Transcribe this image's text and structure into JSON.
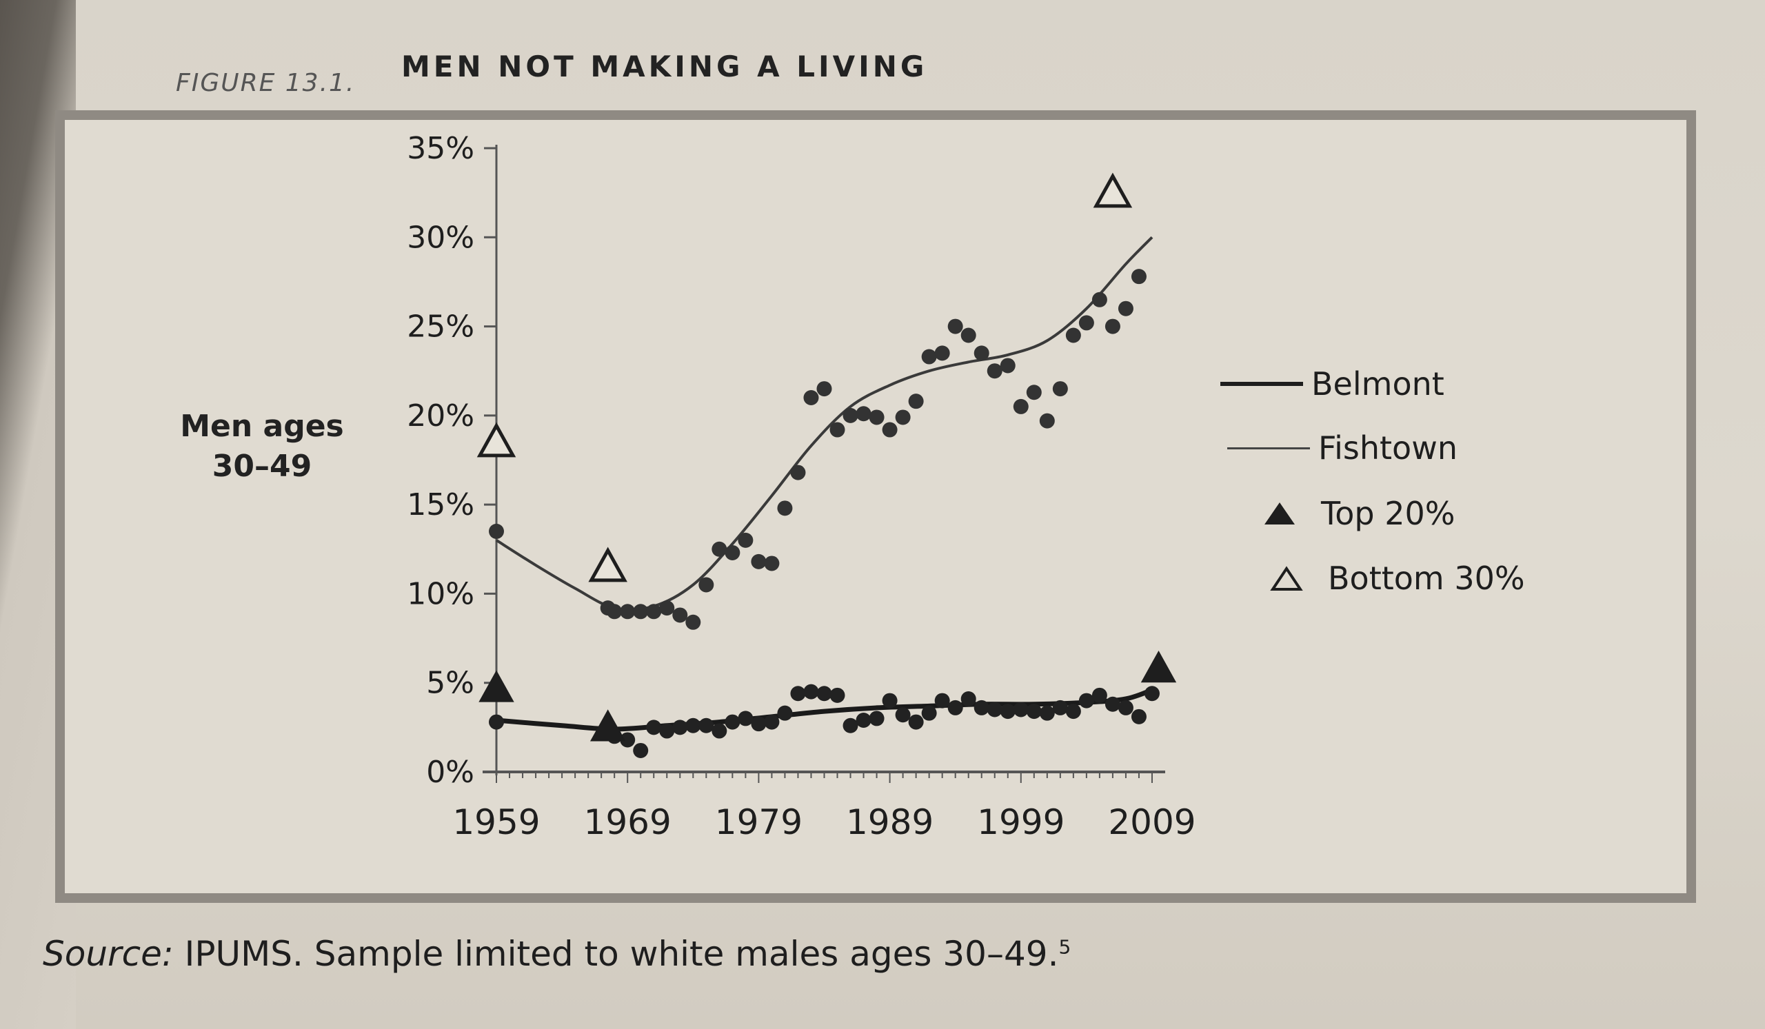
{
  "page": {
    "figure_label": "FIGURE 13.1.",
    "figure_title": "MEN NOT MAKING A LIVING",
    "source_prefix": "Source:",
    "source_text": " IPUMS. Sample limited to white males ages 30–49.",
    "source_footnote": "5"
  },
  "chart_data": {
    "type": "scatter",
    "title": "MEN NOT MAKING A LIVING",
    "ylabel_line1": "Men ages",
    "ylabel_line2": "30–49",
    "xlabel": "",
    "y_ticks": [
      "0%",
      "5%",
      "10%",
      "15%",
      "20%",
      "25%",
      "30%",
      "35%"
    ],
    "x_ticks": [
      "1959",
      "1969",
      "1979",
      "1989",
      "1999",
      "2009"
    ],
    "ylim": [
      0,
      35
    ],
    "xlim": [
      1959,
      2010
    ],
    "grid": false,
    "legend_position": "right",
    "colors": {
      "ink": "#1e1e1e",
      "fishtown": "#3a3a3a",
      "belmont": "#1a1a1a"
    },
    "legend": [
      {
        "label": "Belmont",
        "symbol": "thick-line"
      },
      {
        "label": "Fishtown",
        "symbol": "thin-line"
      },
      {
        "label": "Top 20%",
        "symbol": "filled-triangle"
      },
      {
        "label": "Bottom 30%",
        "symbol": "open-triangle"
      }
    ],
    "series": [
      {
        "name": "Fishtown",
        "points": [
          [
            1959,
            13.5
          ],
          [
            1967.5,
            9.2
          ],
          [
            1968,
            9.0
          ],
          [
            1969,
            9.0
          ],
          [
            1970,
            9.0
          ],
          [
            1971,
            9.0
          ],
          [
            1972,
            9.2
          ],
          [
            1973,
            8.8
          ],
          [
            1974,
            8.4
          ],
          [
            1975,
            10.5
          ],
          [
            1976,
            12.5
          ],
          [
            1977,
            12.3
          ],
          [
            1978,
            13.0
          ],
          [
            1979,
            11.8
          ],
          [
            1980,
            11.7
          ],
          [
            1981,
            14.8
          ],
          [
            1982,
            16.8
          ],
          [
            1983,
            21.0
          ],
          [
            1984,
            21.5
          ],
          [
            1985,
            19.2
          ],
          [
            1986,
            20.0
          ],
          [
            1987,
            20.1
          ],
          [
            1988,
            19.9
          ],
          [
            1989,
            19.2
          ],
          [
            1990,
            19.9
          ],
          [
            1991,
            20.8
          ],
          [
            1992,
            23.3
          ],
          [
            1993,
            23.5
          ],
          [
            1994,
            25.0
          ],
          [
            1995,
            24.5
          ],
          [
            1996,
            23.5
          ],
          [
            1997,
            22.5
          ],
          [
            1998,
            22.8
          ],
          [
            1999,
            20.5
          ],
          [
            2000,
            21.3
          ],
          [
            2001,
            19.7
          ],
          [
            2002,
            21.5
          ],
          [
            2003,
            24.5
          ],
          [
            2004,
            25.2
          ],
          [
            2005,
            26.5
          ],
          [
            2006,
            25.0
          ],
          [
            2007,
            26.0
          ],
          [
            2008,
            27.8
          ]
        ],
        "fit": [
          [
            1959,
            13.0
          ],
          [
            1962,
            11.6
          ],
          [
            1965,
            10.3
          ],
          [
            1968,
            9.2
          ],
          [
            1971,
            9.3
          ],
          [
            1974,
            10.5
          ],
          [
            1977,
            12.8
          ],
          [
            1980,
            15.5
          ],
          [
            1983,
            18.3
          ],
          [
            1986,
            20.5
          ],
          [
            1989,
            21.7
          ],
          [
            1992,
            22.5
          ],
          [
            1995,
            23.0
          ],
          [
            1998,
            23.4
          ],
          [
            2001,
            24.2
          ],
          [
            2004,
            26.0
          ],
          [
            2007,
            28.5
          ],
          [
            2009,
            30.0
          ]
        ]
      },
      {
        "name": "Belmont",
        "points": [
          [
            1959,
            2.8
          ],
          [
            1968,
            2.0
          ],
          [
            1969,
            1.8
          ],
          [
            1970,
            1.2
          ],
          [
            1971,
            2.5
          ],
          [
            1972,
            2.3
          ],
          [
            1973,
            2.5
          ],
          [
            1974,
            2.6
          ],
          [
            1975,
            2.6
          ],
          [
            1976,
            2.3
          ],
          [
            1977,
            2.8
          ],
          [
            1978,
            3.0
          ],
          [
            1979,
            2.7
          ],
          [
            1980,
            2.8
          ],
          [
            1981,
            3.3
          ],
          [
            1982,
            4.4
          ],
          [
            1983,
            4.5
          ],
          [
            1984,
            4.4
          ],
          [
            1985,
            4.3
          ],
          [
            1986,
            2.6
          ],
          [
            1987,
            2.9
          ],
          [
            1988,
            3.0
          ],
          [
            1989,
            4.0
          ],
          [
            1990,
            3.2
          ],
          [
            1991,
            2.8
          ],
          [
            1992,
            3.3
          ],
          [
            1993,
            4.0
          ],
          [
            1994,
            3.6
          ],
          [
            1995,
            4.1
          ],
          [
            1996,
            3.6
          ],
          [
            1997,
            3.5
          ],
          [
            1998,
            3.4
          ],
          [
            1999,
            3.5
          ],
          [
            2000,
            3.4
          ],
          [
            2001,
            3.3
          ],
          [
            2002,
            3.6
          ],
          [
            2003,
            3.4
          ],
          [
            2004,
            4.0
          ],
          [
            2005,
            4.3
          ],
          [
            2006,
            3.8
          ],
          [
            2007,
            3.6
          ],
          [
            2008,
            3.1
          ],
          [
            2009,
            4.4
          ]
        ],
        "fit": [
          [
            1959,
            2.9
          ],
          [
            1964,
            2.6
          ],
          [
            1968,
            2.4
          ],
          [
            1972,
            2.6
          ],
          [
            1976,
            2.8
          ],
          [
            1980,
            3.1
          ],
          [
            1984,
            3.4
          ],
          [
            1988,
            3.6
          ],
          [
            1992,
            3.7
          ],
          [
            1996,
            3.8
          ],
          [
            2000,
            3.8
          ],
          [
            2004,
            3.9
          ],
          [
            2007,
            4.1
          ],
          [
            2009,
            4.6
          ]
        ]
      },
      {
        "name": "Top 20%",
        "points": [
          [
            1959,
            4.7
          ],
          [
            1967.5,
            2.5
          ],
          [
            2009.5,
            5.8
          ]
        ]
      },
      {
        "name": "Bottom 30%",
        "points": [
          [
            1959,
            18.5
          ],
          [
            1967.5,
            11.5
          ],
          [
            2006,
            32.5
          ]
        ]
      }
    ]
  }
}
